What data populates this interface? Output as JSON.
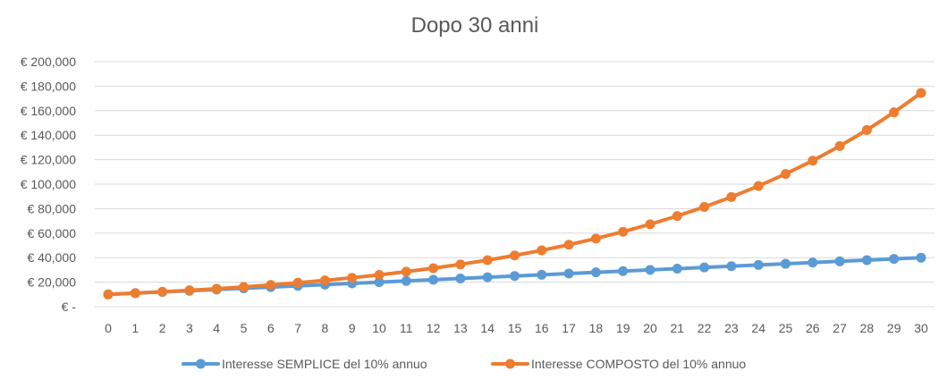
{
  "chart_data": {
    "type": "line",
    "title": "Dopo 30 anni",
    "xlabel": "",
    "ylabel": "",
    "x": [
      0,
      1,
      2,
      3,
      4,
      5,
      6,
      7,
      8,
      9,
      10,
      11,
      12,
      13,
      14,
      15,
      16,
      17,
      18,
      19,
      20,
      21,
      22,
      23,
      24,
      25,
      26,
      27,
      28,
      29,
      30
    ],
    "ylim": [
      0,
      200000
    ],
    "yticks": [
      0,
      20000,
      40000,
      60000,
      80000,
      100000,
      120000,
      140000,
      160000,
      180000,
      200000
    ],
    "ytick_labels": [
      "€ -",
      "€ 20,000",
      "€ 40,000",
      "€ 60,000",
      "€ 80,000",
      "€ 100,000",
      "€ 120,000",
      "€ 140,000",
      "€ 160,000",
      "€ 180,000",
      "€ 200,000"
    ],
    "grid": true,
    "legend_position": "bottom",
    "series": [
      {
        "name": "Interesse SEMPLICE del 10% annuo",
        "color": "#5b9bd5",
        "values": [
          10000,
          11000,
          12000,
          13000,
          14000,
          15000,
          16000,
          17000,
          18000,
          19000,
          20000,
          21000,
          22000,
          23000,
          24000,
          25000,
          26000,
          27000,
          28000,
          29000,
          30000,
          31000,
          32000,
          33000,
          34000,
          35000,
          36000,
          37000,
          38000,
          39000,
          40000
        ]
      },
      {
        "name": "Interesse COMPOSTO del 10% annuo",
        "color": "#ed7d31",
        "values": [
          10000,
          11000,
          12100,
          13310,
          14641,
          16105,
          17716,
          19487,
          21436,
          23579,
          25937,
          28531,
          31384,
          34523,
          37975,
          41772,
          45950,
          50545,
          55599,
          61159,
          67275,
          74002,
          81403,
          89543,
          98497,
          108347,
          119182,
          131100,
          144210,
          158631,
          174494
        ]
      }
    ]
  }
}
